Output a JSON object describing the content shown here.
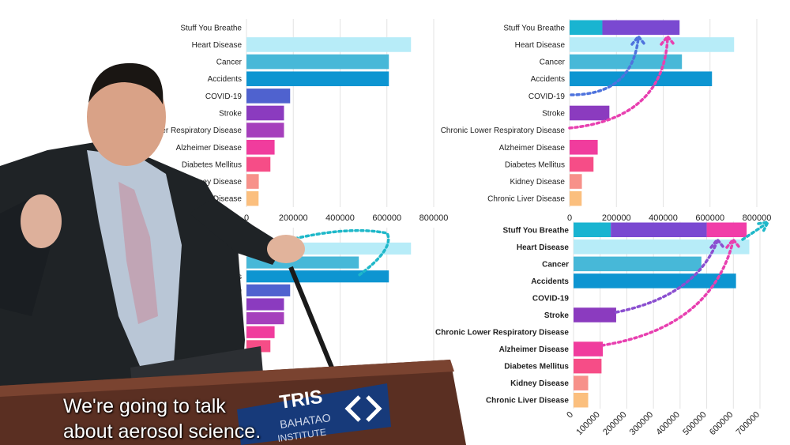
{
  "video": {
    "caption_lines": [
      "We're going to talk",
      "about aerosol science."
    ],
    "podium_sign_lines": [
      "TRIS",
      "BAHATAO",
      "INSTITUTE"
    ]
  },
  "colors": {
    "stuff_teal": "#19b4d1",
    "stuff_purple": "#7a49d1",
    "stuff_magenta": "#f13da8",
    "heart": "#b7ecf8",
    "cancer": "#47b8d8",
    "accidents": "#0d95d1",
    "covid": "#4f62cf",
    "stroke": "#8b3bbf",
    "clrd": "#a53fbc",
    "alzheimer": "#f03c9d",
    "diabetes": "#f64d87",
    "kidney": "#f7918a",
    "liver": "#fbbf7e",
    "arrow_teal": "#1fb8c9",
    "arrow_blue": "#4e73dd",
    "arrow_purple": "#8b4fd0",
    "arrow_pink": "#e840b0",
    "grid": "#e3e3e3"
  },
  "chart_data": [
    {
      "type": "bar",
      "orientation": "horizontal",
      "categories": [
        "Stuff You Breathe",
        "Heart Disease",
        "Cancer",
        "Accidents",
        "COVID-19",
        "Stroke",
        "Chronic Lower Respiratory Disease",
        "Alzheimer Disease",
        "Diabetes Mellitus",
        "Kidney Disease",
        "Chronic Liver Disease"
      ],
      "display_categories": [
        "Stuff You Breathe",
        "Heart Disease",
        "Cancer",
        "Accidents",
        "COVID-19",
        "Stroke",
        "wer Respiratory Disease",
        "Alzheimer Disease",
        "Diabetes Mellitus",
        "Kidney Disease",
        "Liver Disease"
      ],
      "values": [
        0,
        702880,
        608371,
        608371,
        186552,
        160264,
        160264,
        120122,
        102188,
        52547,
        51642
      ],
      "xlim": [
        0,
        800000
      ],
      "xticks": [
        0,
        200000,
        400000,
        600000,
        800000
      ],
      "tick_labels": [
        "0",
        "200000",
        "400000",
        "600000",
        "800000"
      ],
      "grid": true
    },
    {
      "type": "bar",
      "orientation": "horizontal",
      "stacked": true,
      "categories": [
        "Stuff You Breathe",
        "Heart Disease",
        "Cancer",
        "Accidents",
        "COVID-19",
        "Stroke",
        "Chronic Lower Respiratory Disease",
        "Alzheimer Disease",
        "Diabetes Mellitus",
        "Kidney Disease",
        "Chronic Liver Disease"
      ],
      "series": [
        {
          "values": [
            140000,
            702880,
            480000,
            608371,
            0,
            170000,
            0,
            120122,
            102188,
            52547,
            51642
          ]
        },
        {
          "values": [
            330000,
            0,
            0,
            0,
            0,
            0,
            0,
            0,
            0,
            0,
            0
          ]
        }
      ],
      "xlim": [
        0,
        800000
      ],
      "xticks": [
        0,
        200000,
        400000,
        600000,
        800000
      ],
      "tick_labels": [
        "0",
        "200000",
        "400000",
        "600000",
        "800000"
      ],
      "grid": true
    },
    {
      "type": "bar",
      "orientation": "horizontal",
      "categories": [
        "Stuff You Breathe",
        "Heart Disease",
        "Cancer",
        "Accidents",
        "COVID-19",
        "Stroke",
        "Chronic Lower Respiratory Disease",
        "Alzheimer Disease",
        "Diabetes Mellitus",
        "Kidney Disease",
        "Chronic Liver Disease"
      ],
      "display_categories": [
        "Breathe",
        "",
        "",
        "nts",
        "COVID-19",
        "Stroke",
        "Disease",
        "",
        "",
        "",
        ""
      ],
      "values": [
        0,
        702880,
        480000,
        608371,
        186552,
        160264,
        160264,
        120122,
        102188,
        52547,
        51642
      ],
      "xlim": [
        0,
        800000
      ],
      "grid": true
    },
    {
      "type": "bar",
      "orientation": "horizontal",
      "stacked": true,
      "categories": [
        "Stuff You Breathe",
        "Heart Disease",
        "Cancer",
        "Accidents",
        "COVID-19",
        "Stroke",
        "Chronic Lower Respiratory Disease",
        "Alzheimer Disease",
        "Diabetes Mellitus",
        "Kidney Disease",
        "Chronic Liver Disease"
      ],
      "series": [
        {
          "values": [
            140000,
            660000,
            480000,
            610000,
            0,
            160000,
            0,
            110000,
            105000,
            55000,
            55000
          ]
        },
        {
          "values": [
            360000,
            0,
            0,
            0,
            0,
            0,
            0,
            0,
            0,
            0,
            0
          ]
        },
        {
          "values": [
            150000,
            0,
            0,
            0,
            0,
            0,
            0,
            0,
            0,
            0,
            0
          ]
        }
      ],
      "xlim": [
        0,
        700000
      ],
      "xticks": [
        0,
        100000,
        200000,
        300000,
        400000,
        500000,
        600000,
        700000
      ],
      "tick_labels": [
        "0",
        "100000",
        "200000",
        "300000",
        "400000",
        "500000",
        "600000",
        "700000"
      ],
      "tick_rotation": -45,
      "grid": true
    }
  ]
}
